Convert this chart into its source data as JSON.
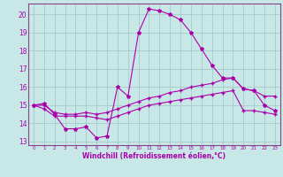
{
  "background_color": "#c8e8e8",
  "grid_color": "#a0c4c4",
  "line_color": "#aa00aa",
  "xlabel": "Windchill (Refroidissement éolien,°C)",
  "xlim": [
    -0.5,
    23.5
  ],
  "ylim": [
    12.8,
    20.6
  ],
  "yticks": [
    13,
    14,
    15,
    16,
    17,
    18,
    19,
    20
  ],
  "xticks": [
    0,
    1,
    2,
    3,
    4,
    5,
    6,
    7,
    8,
    9,
    10,
    11,
    12,
    13,
    14,
    15,
    16,
    17,
    18,
    19,
    20,
    21,
    22,
    23
  ],
  "line1_x": [
    0,
    1,
    2,
    3,
    4,
    5,
    6,
    7,
    8,
    9,
    10,
    11,
    12,
    13,
    14,
    15,
    16,
    17,
    18,
    19,
    20,
    21,
    22,
    23
  ],
  "line1_y": [
    15.0,
    15.1,
    14.5,
    13.7,
    13.7,
    13.8,
    13.2,
    13.3,
    16.0,
    15.5,
    19.0,
    20.3,
    20.2,
    20.0,
    19.7,
    19.0,
    18.1,
    17.2,
    16.5,
    16.5,
    15.9,
    15.8,
    15.0,
    14.7
  ],
  "line2_x": [
    0,
    1,
    2,
    3,
    4,
    5,
    6,
    7,
    8,
    9,
    10,
    11,
    12,
    13,
    14,
    15,
    16,
    17,
    18,
    19,
    20,
    21,
    22,
    23
  ],
  "line2_y": [
    15.0,
    15.0,
    14.6,
    14.5,
    14.5,
    14.6,
    14.5,
    14.6,
    14.8,
    15.0,
    15.2,
    15.4,
    15.5,
    15.7,
    15.8,
    16.0,
    16.1,
    16.2,
    16.4,
    16.5,
    15.9,
    15.8,
    15.5,
    15.5
  ],
  "line3_x": [
    0,
    1,
    2,
    3,
    4,
    5,
    6,
    7,
    8,
    9,
    10,
    11,
    12,
    13,
    14,
    15,
    16,
    17,
    18,
    19,
    20,
    21,
    22,
    23
  ],
  "line3_y": [
    15.0,
    14.8,
    14.4,
    14.4,
    14.4,
    14.4,
    14.3,
    14.2,
    14.4,
    14.6,
    14.8,
    15.0,
    15.1,
    15.2,
    15.3,
    15.4,
    15.5,
    15.6,
    15.7,
    15.8,
    14.7,
    14.7,
    14.6,
    14.5
  ],
  "spine_color": "#884488",
  "marker1": "*",
  "marker2": "+",
  "marker3": "+",
  "linewidth": 0.8,
  "markersize1": 3.0,
  "markersize2": 2.5,
  "markersize3": 2.5,
  "xlabel_fontsize": 5.5,
  "xlabel_fontweight": "bold",
  "xtick_fontsize": 4.0,
  "ytick_fontsize": 5.5
}
